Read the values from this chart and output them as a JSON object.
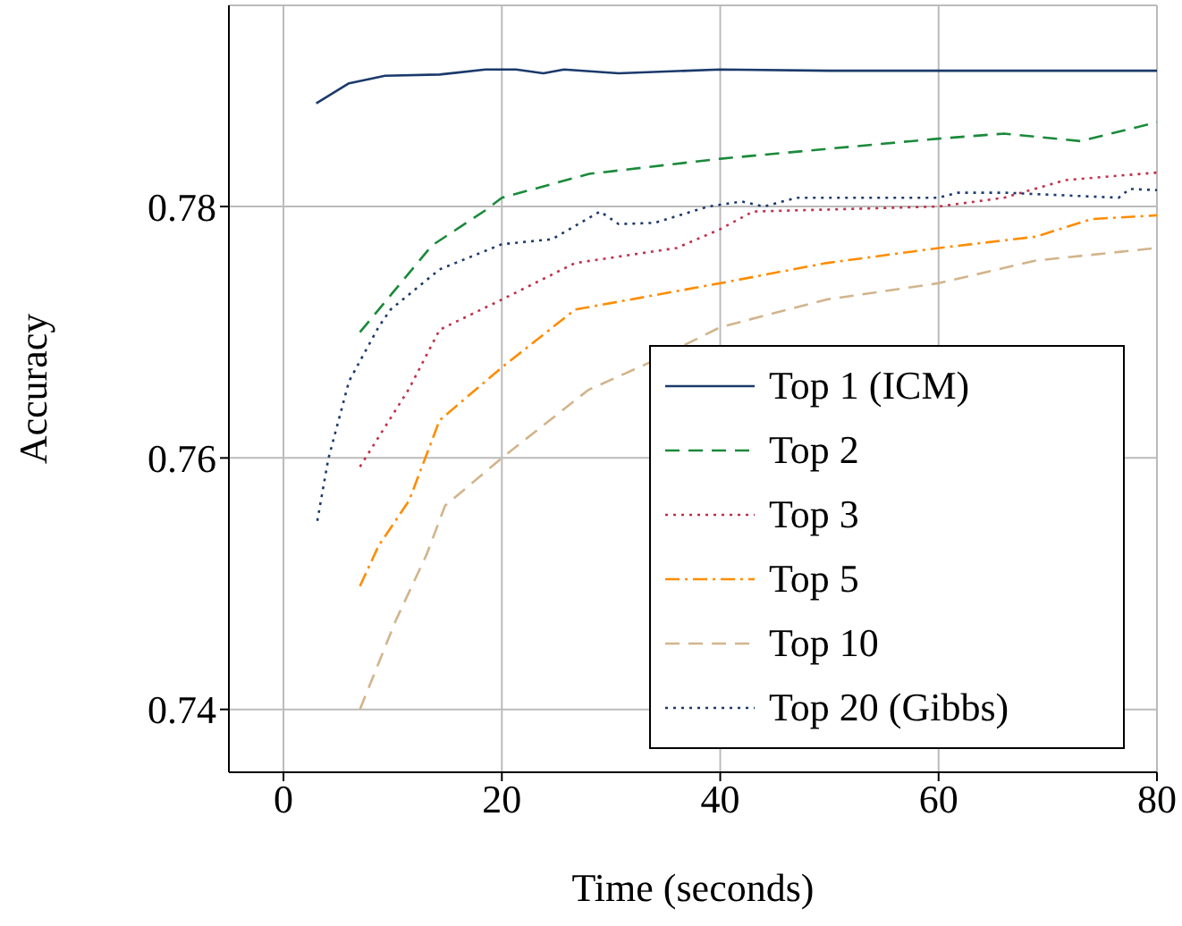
{
  "chart_data": {
    "type": "line",
    "xlabel": "Time (seconds)",
    "ylabel": "Accuracy",
    "xlim": [
      -5,
      80
    ],
    "xticks": [
      0,
      20,
      40,
      60,
      80
    ],
    "ylim": [
      0.735,
      0.796
    ],
    "yticks": [
      0.74,
      0.76,
      0.78
    ],
    "grid": true,
    "legend": "bottom right",
    "marker": "none",
    "series": [
      {
        "name": "Top 1 (ICM)",
        "color": "#1b3a6b",
        "line_style": "solid",
        "x": [
          3,
          6,
          9.3,
          14.3,
          18.5,
          21.3,
          23.8,
          25.7,
          30.7,
          40,
          50,
          60,
          70,
          80
        ],
        "values": [
          0.7882,
          0.7898,
          0.7904,
          0.7905,
          0.7909,
          0.7909,
          0.7906,
          0.7909,
          0.7906,
          0.7909,
          0.7908,
          0.7908,
          0.7908,
          0.7908
        ]
      },
      {
        "name": "Top 2",
        "color": "#1a8a3a",
        "line_style": "dashed",
        "x": [
          7,
          13.6,
          18.5,
          20,
          28,
          40,
          60,
          66,
          73,
          80
        ],
        "values": [
          0.77,
          0.7769,
          0.7797,
          0.7807,
          0.7826,
          0.7838,
          0.7854,
          0.7858,
          0.7852,
          0.7867
        ]
      },
      {
        "name": "Top 3",
        "color": "#c0304a",
        "line_style": "dotted",
        "x": [
          7,
          11.5,
          14.3,
          20,
          26.7,
          36,
          40,
          43,
          60,
          66,
          71.6,
          80
        ],
        "values": [
          0.7593,
          0.7655,
          0.7702,
          0.7726,
          0.7755,
          0.7767,
          0.7782,
          0.7796,
          0.78,
          0.7807,
          0.7821,
          0.7827
        ]
      },
      {
        "name": "Top 5",
        "color": "#ff8c00",
        "line_style": "dashdot",
        "x": [
          7,
          8.7,
          11.5,
          14.3,
          20,
          26.7,
          40,
          49.7,
          60,
          68.9,
          74,
          80
        ],
        "values": [
          0.7498,
          0.753,
          0.7566,
          0.763,
          0.7672,
          0.7718,
          0.7739,
          0.7755,
          0.7767,
          0.7776,
          0.779,
          0.7793
        ]
      },
      {
        "name": "Top 10",
        "color": "#d2b48c",
        "line_style": "dashed",
        "x": [
          7,
          10.3,
          13.1,
          14.8,
          20,
          27.9,
          33.3,
          40,
          49.7,
          60,
          68.9,
          80
        ],
        "values": [
          0.74,
          0.7471,
          0.7523,
          0.7562,
          0.76,
          0.7654,
          0.7675,
          0.7704,
          0.7726,
          0.7739,
          0.7757,
          0.7767
        ]
      },
      {
        "name": "Top 20 (Gibbs)",
        "color": "#1b3a6b",
        "line_style": "dotted",
        "x": [
          3.1,
          4.1,
          6,
          8.7,
          9.8,
          14.3,
          20,
          24.6,
          29,
          30.7,
          34,
          38.9,
          42,
          44,
          47,
          52.5,
          60,
          61.8,
          66,
          76.5,
          77.5,
          80
        ],
        "values": [
          0.755,
          0.7599,
          0.7661,
          0.7704,
          0.7718,
          0.775,
          0.777,
          0.7774,
          0.7796,
          0.7786,
          0.7787,
          0.78,
          0.7804,
          0.78,
          0.7807,
          0.7807,
          0.7807,
          0.7811,
          0.7811,
          0.7807,
          0.7814,
          0.7813
        ]
      }
    ]
  }
}
